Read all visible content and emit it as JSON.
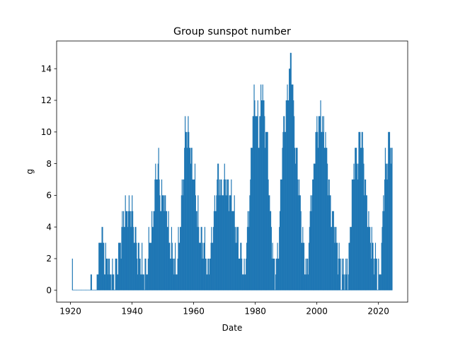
{
  "chart_data": {
    "type": "bar",
    "title": "Group sunspot number",
    "xlabel": "Date",
    "ylabel": "g",
    "xlim": [
      1915.5,
      2029.5
    ],
    "ylim": [
      -0.75,
      15.75
    ],
    "xticks": [
      1920,
      1940,
      1960,
      1980,
      2000,
      2020
    ],
    "yticks": [
      0,
      2,
      4,
      6,
      8,
      10,
      12,
      14
    ],
    "grid": false,
    "legend": "none",
    "bar_color": "#1f77b4",
    "x_step_years": 0.2,
    "series": [
      {
        "peaks": [
          [
            1920.5,
            1
          ],
          [
            1926.5,
            1
          ],
          [
            1926.7,
            2
          ],
          [
            1928.6,
            1
          ],
          [
            1929.5,
            3
          ],
          [
            1930.0,
            4
          ],
          [
            1931.0,
            2
          ],
          [
            1932.0,
            2
          ],
          [
            1933.0,
            1
          ],
          [
            1934.5,
            1
          ],
          [
            1936.0,
            3
          ],
          [
            1937.4,
            5
          ],
          [
            1938.3,
            5
          ],
          [
            1939.0,
            5
          ],
          [
            1939.7,
            5
          ],
          [
            1941.0,
            3
          ],
          [
            1942.3,
            2
          ],
          [
            1943.5,
            1
          ],
          [
            1944.5,
            1
          ],
          [
            1945.5,
            3
          ],
          [
            1946.5,
            4
          ],
          [
            1947.5,
            7
          ],
          [
            1948.3,
            8
          ],
          [
            1949.0,
            6
          ],
          [
            1950.0,
            6
          ],
          [
            1951.0,
            5
          ],
          [
            1952.0,
            3
          ],
          [
            1953.3,
            2
          ],
          [
            1954.3,
            1
          ],
          [
            1955.5,
            4
          ],
          [
            1956.3,
            7
          ],
          [
            1957.3,
            10
          ],
          [
            1958.0,
            10
          ],
          [
            1958.7,
            9
          ],
          [
            1959.5,
            8
          ],
          [
            1960.5,
            6
          ],
          [
            1961.5,
            4
          ],
          [
            1962.5,
            3
          ],
          [
            1963.5,
            3
          ],
          [
            1964.5,
            1
          ],
          [
            1965.7,
            3
          ],
          [
            1966.7,
            5
          ],
          [
            1967.5,
            7
          ],
          [
            1968.2,
            7
          ],
          [
            1969.0,
            6
          ],
          [
            1969.7,
            7
          ],
          [
            1970.5,
            7
          ],
          [
            1971.3,
            6
          ],
          [
            1972.0,
            6
          ],
          [
            1972.7,
            5
          ],
          [
            1973.5,
            4
          ],
          [
            1974.5,
            3
          ],
          [
            1975.5,
            2
          ],
          [
            1976.5,
            1
          ],
          [
            1977.5,
            4
          ],
          [
            1978.5,
            8
          ],
          [
            1979.2,
            11
          ],
          [
            1979.7,
            12
          ],
          [
            1980.4,
            11
          ],
          [
            1981.0,
            10
          ],
          [
            1981.6,
            11
          ],
          [
            1982.2,
            14
          ],
          [
            1982.8,
            11
          ],
          [
            1983.5,
            10
          ],
          [
            1984.3,
            7
          ],
          [
            1985.0,
            4
          ],
          [
            1985.7,
            2
          ],
          [
            1986.5,
            1
          ],
          [
            1987.5,
            3
          ],
          [
            1988.3,
            7
          ],
          [
            1989.0,
            10
          ],
          [
            1989.7,
            11
          ],
          [
            1990.3,
            12
          ],
          [
            1991.0,
            14
          ],
          [
            1991.5,
            15
          ],
          [
            1992.2,
            12
          ],
          [
            1992.8,
            9
          ],
          [
            1993.6,
            8
          ],
          [
            1994.3,
            6
          ],
          [
            1995.0,
            4
          ],
          [
            1995.8,
            2
          ],
          [
            1996.5,
            1
          ],
          [
            1997.3,
            3
          ],
          [
            1998.0,
            6
          ],
          [
            1998.7,
            7
          ],
          [
            1999.3,
            9
          ],
          [
            2000.0,
            10
          ],
          [
            2000.5,
            11
          ],
          [
            2001.2,
            11
          ],
          [
            2001.8,
            10
          ],
          [
            2002.5,
            10
          ],
          [
            2003.3,
            8
          ],
          [
            2004.0,
            6
          ],
          [
            2004.7,
            5
          ],
          [
            2005.5,
            4
          ],
          [
            2006.3,
            3
          ],
          [
            2007.2,
            2
          ],
          [
            2008.0,
            1
          ],
          [
            2008.7,
            1
          ],
          [
            2009.5,
            1
          ],
          [
            2010.3,
            2
          ],
          [
            2011.0,
            5
          ],
          [
            2011.7,
            7
          ],
          [
            2012.3,
            9
          ],
          [
            2012.9,
            8
          ],
          [
            2013.5,
            9
          ],
          [
            2014.2,
            10
          ],
          [
            2014.8,
            9
          ],
          [
            2015.4,
            7
          ],
          [
            2016.2,
            5
          ],
          [
            2017.0,
            4
          ],
          [
            2017.8,
            3
          ],
          [
            2018.7,
            2
          ],
          [
            2019.6,
            1
          ],
          [
            2020.4,
            1
          ],
          [
            2021.2,
            4
          ],
          [
            2022.0,
            8
          ],
          [
            2022.6,
            8
          ],
          [
            2023.2,
            9
          ],
          [
            2023.6,
            10
          ],
          [
            2024.0,
            9
          ],
          [
            2024.3,
            8
          ]
        ],
        "gaps": [
          [
            1920.6,
            1926.4
          ],
          [
            1926.8,
            1928.4
          ]
        ]
      }
    ]
  }
}
